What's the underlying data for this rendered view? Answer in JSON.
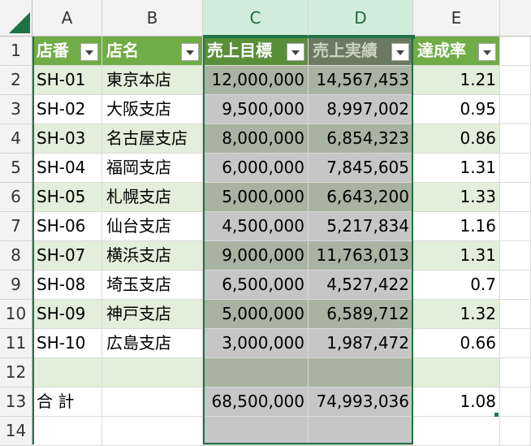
{
  "columns": [
    {
      "id": "A",
      "label": "A",
      "selected": false
    },
    {
      "id": "B",
      "label": "B",
      "selected": false
    },
    {
      "id": "C",
      "label": "C",
      "selected": true
    },
    {
      "id": "D",
      "label": "D",
      "selected": true
    },
    {
      "id": "E",
      "label": "E",
      "selected": false
    }
  ],
  "row_numbers": [
    "1",
    "2",
    "3",
    "4",
    "5",
    "6",
    "7",
    "8",
    "9",
    "10",
    "11",
    "12",
    "13",
    "14"
  ],
  "table_headers": [
    "店番",
    "店名",
    "売上目標",
    "売上実績",
    "達成率"
  ],
  "rows": [
    [
      "SH-01",
      "東京本店",
      "12,000,000",
      "14,567,453",
      "1.21"
    ],
    [
      "SH-02",
      "大阪支店",
      "9,500,000",
      "8,997,002",
      "0.95"
    ],
    [
      "SH-03",
      "名古屋支店",
      "8,000,000",
      "6,854,323",
      "0.86"
    ],
    [
      "SH-04",
      "福岡支店",
      "6,000,000",
      "7,845,605",
      "1.31"
    ],
    [
      "SH-05",
      "札幌支店",
      "5,000,000",
      "6,643,200",
      "1.33"
    ],
    [
      "SH-06",
      "仙台支店",
      "4,500,000",
      "5,217,834",
      "1.16"
    ],
    [
      "SH-07",
      "横浜支店",
      "9,000,000",
      "11,763,013",
      "1.31"
    ],
    [
      "SH-08",
      "埼玉支店",
      "6,500,000",
      "4,527,422",
      "0.7"
    ],
    [
      "SH-09",
      "神戸支店",
      "5,000,000",
      "6,589,712",
      "1.32"
    ],
    [
      "SH-10",
      "広島支店",
      "3,000,000",
      "1,987,472",
      "0.66"
    ],
    [
      "",
      "",
      "",
      "",
      ""
    ]
  ],
  "total_row": [
    "合 計",
    "",
    "68,500,000",
    "74,993,036",
    "1.08"
  ],
  "colors": {
    "header_green": "#70ad47",
    "band_green": "#e2efda",
    "selection": "#217346"
  }
}
